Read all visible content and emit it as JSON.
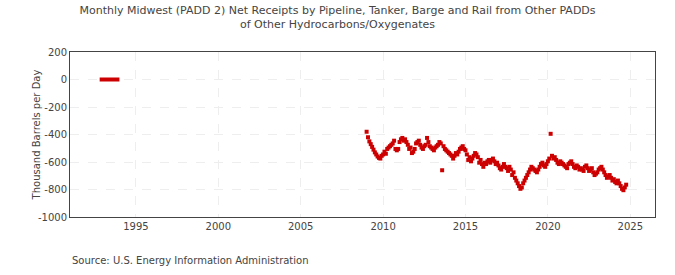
{
  "chart_data": {
    "type": "scatter",
    "title": "Monthly Midwest (PADD 2) Net Receipts by Pipeline, Tanker, Barge and Rail from Other PADDs\nof Other Hydrocarbons/Oxygenates",
    "ylabel": "Thousand Barrels per Day",
    "annotations": [
      "Source: U.S. Energy Information Administration"
    ],
    "xlim": [
      1991.0,
      2026.5
    ],
    "xticks": [
      1995,
      2000,
      2005,
      2010,
      2015,
      2020,
      2025
    ],
    "ylim": [
      -1000,
      200
    ],
    "yticks": [
      -1000,
      -800,
      -600,
      -400,
      -200,
      0,
      200
    ],
    "grid": true,
    "series": [
      {
        "type": "line",
        "color": "#cc0000",
        "x": [
          1992.8,
          1994.0
        ],
        "values": [
          0,
          0
        ]
      },
      {
        "type": "scatter",
        "color": "#cc0000",
        "marker": "square",
        "x": [
          2009.0,
          2009.083,
          2009.167,
          2009.25,
          2009.333,
          2009.417,
          2009.5,
          2009.583,
          2009.667,
          2009.75,
          2009.833,
          2009.917,
          2010.0,
          2010.083,
          2010.167,
          2010.25,
          2010.333,
          2010.417,
          2010.5,
          2010.583,
          2010.667,
          2010.75,
          2010.833,
          2010.917,
          2011.0,
          2011.083,
          2011.167,
          2011.25,
          2011.333,
          2011.417,
          2011.5,
          2011.583,
          2011.667,
          2011.75,
          2011.833,
          2011.917,
          2012.0,
          2012.083,
          2012.167,
          2012.25,
          2012.333,
          2012.417,
          2012.5,
          2012.583,
          2012.667,
          2012.75,
          2012.833,
          2012.917,
          2013.0,
          2013.083,
          2013.167,
          2013.25,
          2013.333,
          2013.417,
          2013.5,
          2013.583,
          2013.667,
          2013.75,
          2013.833,
          2013.917,
          2014.0,
          2014.083,
          2014.167,
          2014.25,
          2014.333,
          2014.417,
          2014.5,
          2014.583,
          2014.667,
          2014.75,
          2014.833,
          2014.917,
          2015.0,
          2015.083,
          2015.167,
          2015.25,
          2015.333,
          2015.417,
          2015.5,
          2015.583,
          2015.667,
          2015.75,
          2015.833,
          2015.917,
          2016.0,
          2016.083,
          2016.167,
          2016.25,
          2016.333,
          2016.417,
          2016.5,
          2016.583,
          2016.667,
          2016.75,
          2016.833,
          2016.917,
          2017.0,
          2017.083,
          2017.167,
          2017.25,
          2017.333,
          2017.417,
          2017.5,
          2017.583,
          2017.667,
          2017.75,
          2017.833,
          2017.917,
          2018.0,
          2018.083,
          2018.167,
          2018.25,
          2018.333,
          2018.417,
          2018.5,
          2018.583,
          2018.667,
          2018.75,
          2018.833,
          2018.917,
          2019.0,
          2019.083,
          2019.167,
          2019.25,
          2019.333,
          2019.417,
          2019.5,
          2019.583,
          2019.667,
          2019.75,
          2019.833,
          2019.917,
          2020.0,
          2020.083,
          2020.167,
          2020.25,
          2020.333,
          2020.417,
          2020.5,
          2020.583,
          2020.667,
          2020.75,
          2020.833,
          2020.917,
          2021.0,
          2021.083,
          2021.167,
          2021.25,
          2021.333,
          2021.417,
          2021.5,
          2021.583,
          2021.667,
          2021.75,
          2021.833,
          2021.917,
          2022.0,
          2022.083,
          2022.167,
          2022.25,
          2022.333,
          2022.417,
          2022.5,
          2022.583,
          2022.667,
          2022.75,
          2022.833,
          2022.917,
          2023.0,
          2023.083,
          2023.167,
          2023.25,
          2023.333,
          2023.417,
          2023.5,
          2023.583,
          2023.667,
          2023.75,
          2023.833,
          2023.917,
          2024.0,
          2024.083,
          2024.167,
          2024.25,
          2024.333,
          2024.417,
          2024.5,
          2024.583,
          2024.667,
          2024.75
        ],
        "values": [
          -380,
          -420,
          -450,
          -470,
          -490,
          -510,
          -530,
          -545,
          -560,
          -570,
          -575,
          -555,
          -545,
          -525,
          -540,
          -505,
          -495,
          -485,
          -475,
          -465,
          -445,
          -505,
          -515,
          -505,
          -455,
          -435,
          -425,
          -445,
          -435,
          -455,
          -475,
          -505,
          -495,
          -535,
          -525,
          -505,
          -465,
          -455,
          -445,
          -475,
          -495,
          -505,
          -485,
          -475,
          -425,
          -455,
          -485,
          -495,
          -505,
          -515,
          -495,
          -485,
          -475,
          -455,
          -465,
          -660,
          -485,
          -505,
          -515,
          -525,
          -535,
          -545,
          -555,
          -575,
          -555,
          -535,
          -545,
          -525,
          -505,
          -495,
          -485,
          -505,
          -515,
          -545,
          -585,
          -565,
          -595,
          -575,
          -555,
          -535,
          -545,
          -565,
          -605,
          -585,
          -615,
          -635,
          -605,
          -615,
          -595,
          -585,
          -605,
          -585,
          -575,
          -595,
          -615,
          -605,
          -625,
          -645,
          -655,
          -635,
          -615,
          -635,
          -645,
          -665,
          -635,
          -655,
          -695,
          -675,
          -715,
          -735,
          -755,
          -775,
          -795,
          -785,
          -755,
          -735,
          -715,
          -695,
          -675,
          -655,
          -635,
          -645,
          -655,
          -665,
          -675,
          -655,
          -635,
          -615,
          -605,
          -625,
          -635,
          -615,
          -595,
          -575,
          -395,
          -555,
          -575,
          -565,
          -585,
          -605,
          -615,
          -595,
          -605,
          -615,
          -625,
          -635,
          -645,
          -615,
          -605,
          -595,
          -615,
          -635,
          -645,
          -625,
          -635,
          -655,
          -645,
          -655,
          -665,
          -635,
          -625,
          -645,
          -665,
          -655,
          -645,
          -675,
          -695,
          -685,
          -675,
          -655,
          -645,
          -635,
          -655,
          -675,
          -695,
          -715,
          -705,
          -695,
          -715,
          -735,
          -725,
          -745,
          -755,
          -735,
          -755,
          -775,
          -795,
          -805,
          -785,
          -765
        ]
      }
    ]
  }
}
